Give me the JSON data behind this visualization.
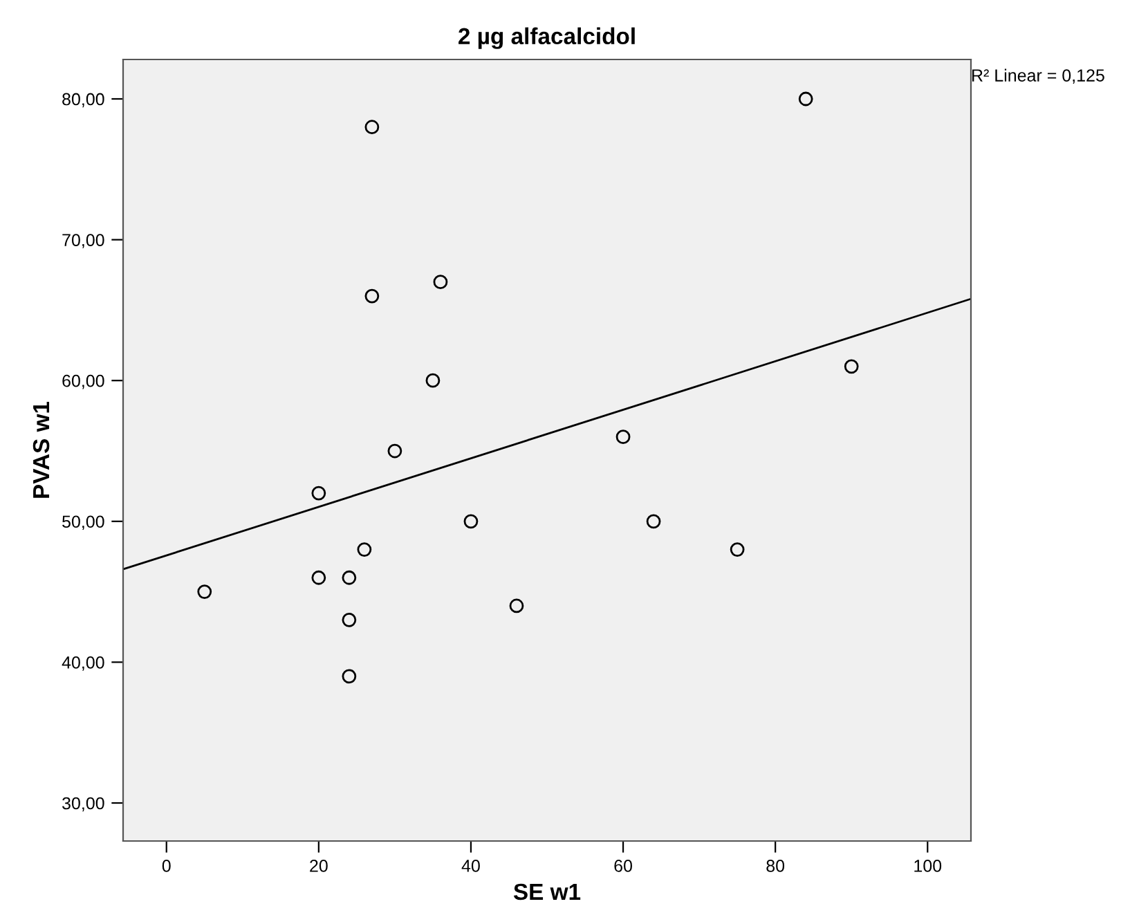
{
  "chart_data": {
    "type": "scatter",
    "title": "2 µg alfacalcidol",
    "xlabel": "SE w1",
    "ylabel": "PVAS w1",
    "annotations": [
      "R² Linear = 0,125"
    ],
    "xlim": [
      -5.7,
      105.7
    ],
    "ylim": [
      27.3,
      82.8
    ],
    "xticks": [
      0,
      20,
      40,
      60,
      80,
      100
    ],
    "yticks": [
      {
        "value": 30,
        "label": "30,00"
      },
      {
        "value": 40,
        "label": "40,00"
      },
      {
        "value": 50,
        "label": "50,00"
      },
      {
        "value": 60,
        "label": "60,00"
      },
      {
        "value": 70,
        "label": "70,00"
      },
      {
        "value": 80,
        "label": "80,00"
      }
    ],
    "grid": false,
    "legend": false,
    "series": [
      {
        "marker": "circle",
        "color": "#000000",
        "x": [
          5,
          20,
          20,
          24,
          24,
          24,
          26,
          27,
          27,
          30,
          35,
          36,
          40,
          46,
          60,
          64,
          75,
          84,
          90
        ],
        "values": [
          45,
          52,
          46,
          46,
          43,
          39,
          48,
          78,
          66,
          55,
          60,
          67,
          50,
          44,
          56,
          50,
          48,
          80,
          61
        ]
      },
      {
        "type": "line",
        "color": "#000000",
        "line_style": "solid",
        "x": [
          -5.7,
          105.7
        ],
        "values": [
          46.6,
          65.8
        ]
      }
    ]
  }
}
